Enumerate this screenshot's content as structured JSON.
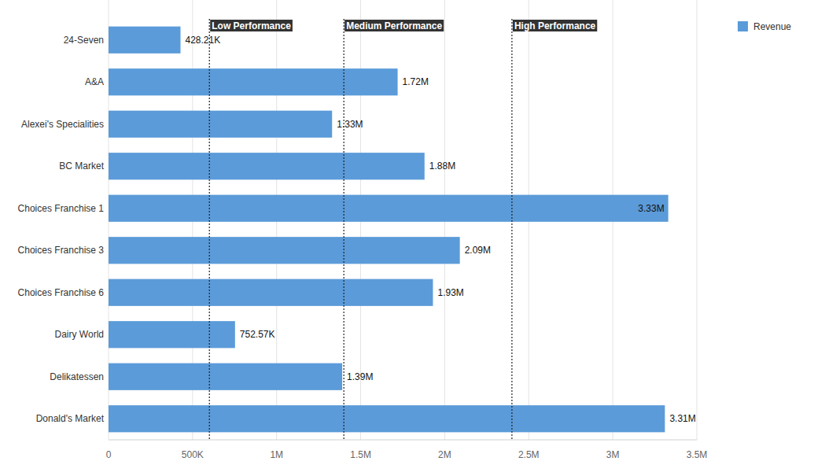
{
  "chart_data": {
    "type": "bar",
    "orientation": "horizontal",
    "categories": [
      "24-Seven",
      "A&A",
      "Alexei's Specialities",
      "BC Market",
      "Choices Franchise 1",
      "Choices Franchise 3",
      "Choices Franchise 6",
      "Dairy World",
      "Delikatessen",
      "Donald's Market"
    ],
    "series": [
      {
        "name": "Revenue",
        "color": "#5b9bd9",
        "values": [
          428210,
          1720000,
          1330000,
          1880000,
          3330000,
          2090000,
          1930000,
          752570,
          1390000,
          3310000
        ],
        "value_labels": [
          "428.21K",
          "1.72M",
          "1.33M",
          "1.88M",
          "3.33M",
          "2.09M",
          "1.93M",
          "752.57K",
          "1.39M",
          "3.31M"
        ]
      }
    ],
    "xlim": [
      0,
      3500000
    ],
    "xticks": [
      0,
      {
        "value": 500000,
        "label": "500K"
      },
      {
        "value": 1000000,
        "label": "1M"
      },
      {
        "value": 1500000,
        "label": "1.5M"
      },
      {
        "value": 2000000,
        "label": "2M"
      },
      {
        "value": 2500000,
        "label": "2.5M"
      },
      {
        "value": 3000000,
        "label": "3M"
      },
      {
        "value": 3500000,
        "label": "3.5M"
      }
    ],
    "annotations": [
      {
        "label": "Low Performance",
        "value": 600000
      },
      {
        "label": "Medium Performance",
        "value": 1400000
      },
      {
        "label": "High Performance",
        "value": 2400000
      }
    ],
    "grid": true,
    "legend": "top-right",
    "data_labels": true
  }
}
